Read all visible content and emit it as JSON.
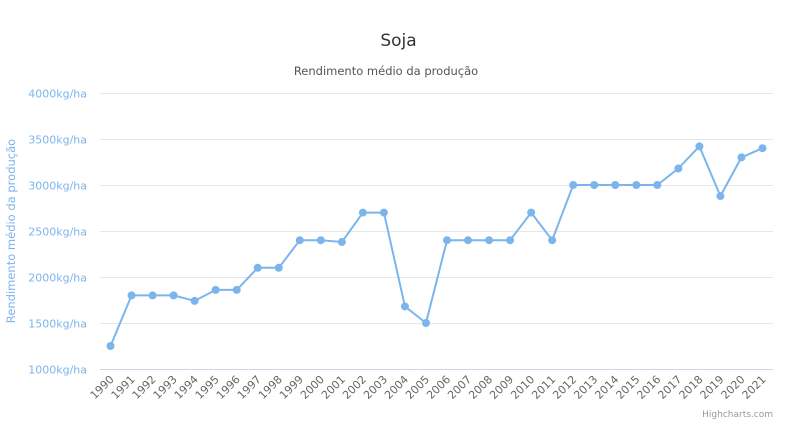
{
  "chart_data": {
    "type": "line",
    "title": "Soja",
    "subtitle": "Rendimento médio da produção",
    "ylabel": "Rendimento médio da produção",
    "xlabel": "",
    "y_unit_suffix": "kg/ha",
    "ylim": [
      1000,
      4000
    ],
    "y_ticks": [
      1000,
      1500,
      2000,
      2500,
      3000,
      3500,
      4000
    ],
    "y_tick_labels": [
      "1000kg/ha",
      "1500kg/ha",
      "2000kg/ha",
      "2500kg/ha",
      "3000kg/ha",
      "3500kg/ha",
      "4000kg/ha"
    ],
    "grid": true,
    "legend": "none",
    "color": "#7cb5ec",
    "categories": [
      "1990",
      "1991",
      "1992",
      "1993",
      "1994",
      "1995",
      "1996",
      "1997",
      "1998",
      "1999",
      "2000",
      "2001",
      "2002",
      "2003",
      "2004",
      "2005",
      "2006",
      "2007",
      "2008",
      "2009",
      "2010",
      "2011",
      "2012",
      "2013",
      "2014",
      "2015",
      "2016",
      "2017",
      "2018",
      "2019",
      "2020",
      "2021"
    ],
    "series": [
      {
        "values": [
          1250,
          1800,
          1800,
          1800,
          1740,
          1860,
          1860,
          2100,
          2100,
          2400,
          2400,
          2380,
          2700,
          2700,
          1680,
          1500,
          2400,
          2400,
          2400,
          2400,
          2700,
          2400,
          3000,
          3000,
          3000,
          3000,
          3000,
          3180,
          3420,
          2880,
          3300,
          3400
        ]
      }
    ]
  },
  "credits": "Highcharts.com"
}
